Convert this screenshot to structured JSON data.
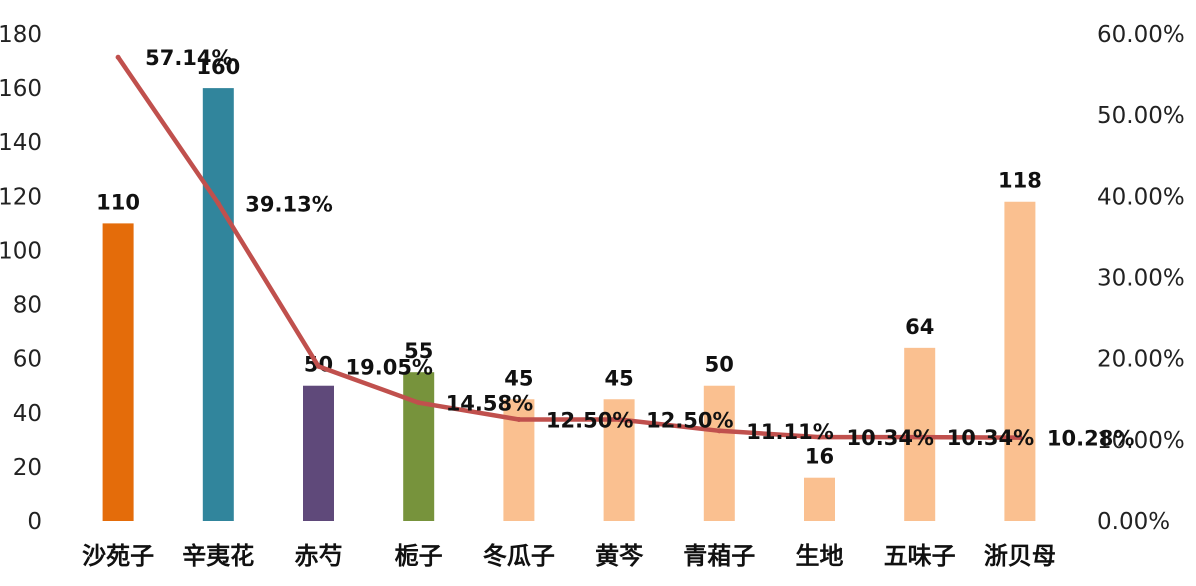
{
  "chart_data": {
    "type": "bar",
    "categories": [
      "沙苑子",
      "辛夷花",
      "赤芍",
      "栀子",
      "冬瓜子",
      "黄芩",
      "青葙子",
      "生地",
      "五味子",
      "浙贝母"
    ],
    "series": [
      {
        "type": "bar",
        "axis": "left",
        "values": [
          110,
          160,
          50,
          55,
          45,
          45,
          50,
          16,
          64,
          118
        ],
        "labels": [
          "110",
          "160",
          "50",
          "55",
          "45",
          "45",
          "50",
          "16",
          "64",
          "118"
        ],
        "colors": [
          "#E46C0A",
          "#31859C",
          "#5F497A",
          "#77933C",
          "#FAC090",
          "#FAC090",
          "#FAC090",
          "#FAC090",
          "#FAC090",
          "#FAC090"
        ]
      },
      {
        "type": "line",
        "axis": "right",
        "values": [
          57.14,
          39.13,
          19.05,
          14.58,
          12.5,
          12.5,
          11.11,
          10.34,
          10.34,
          10.28
        ],
        "labels": [
          "57.14%",
          "39.13%",
          "19.05%",
          "14.58%",
          "12.50%",
          "12.50%",
          "11.11%",
          "10.34%",
          "10.34%",
          "10.28%"
        ],
        "color": "#C0504D"
      }
    ],
    "y_left": {
      "min": 0,
      "max": 180,
      "ticks": [
        "0",
        "20",
        "40",
        "60",
        "80",
        "100",
        "120",
        "140",
        "160",
        "180"
      ]
    },
    "y_right": {
      "min": 0,
      "max": 60,
      "ticks": [
        "0.00%",
        "10.00%",
        "20.00%",
        "30.00%",
        "40.00%",
        "50.00%",
        "60.00%"
      ]
    },
    "title": "",
    "xlabel": "",
    "ylabel": "",
    "grid": false,
    "legend": "none"
  }
}
